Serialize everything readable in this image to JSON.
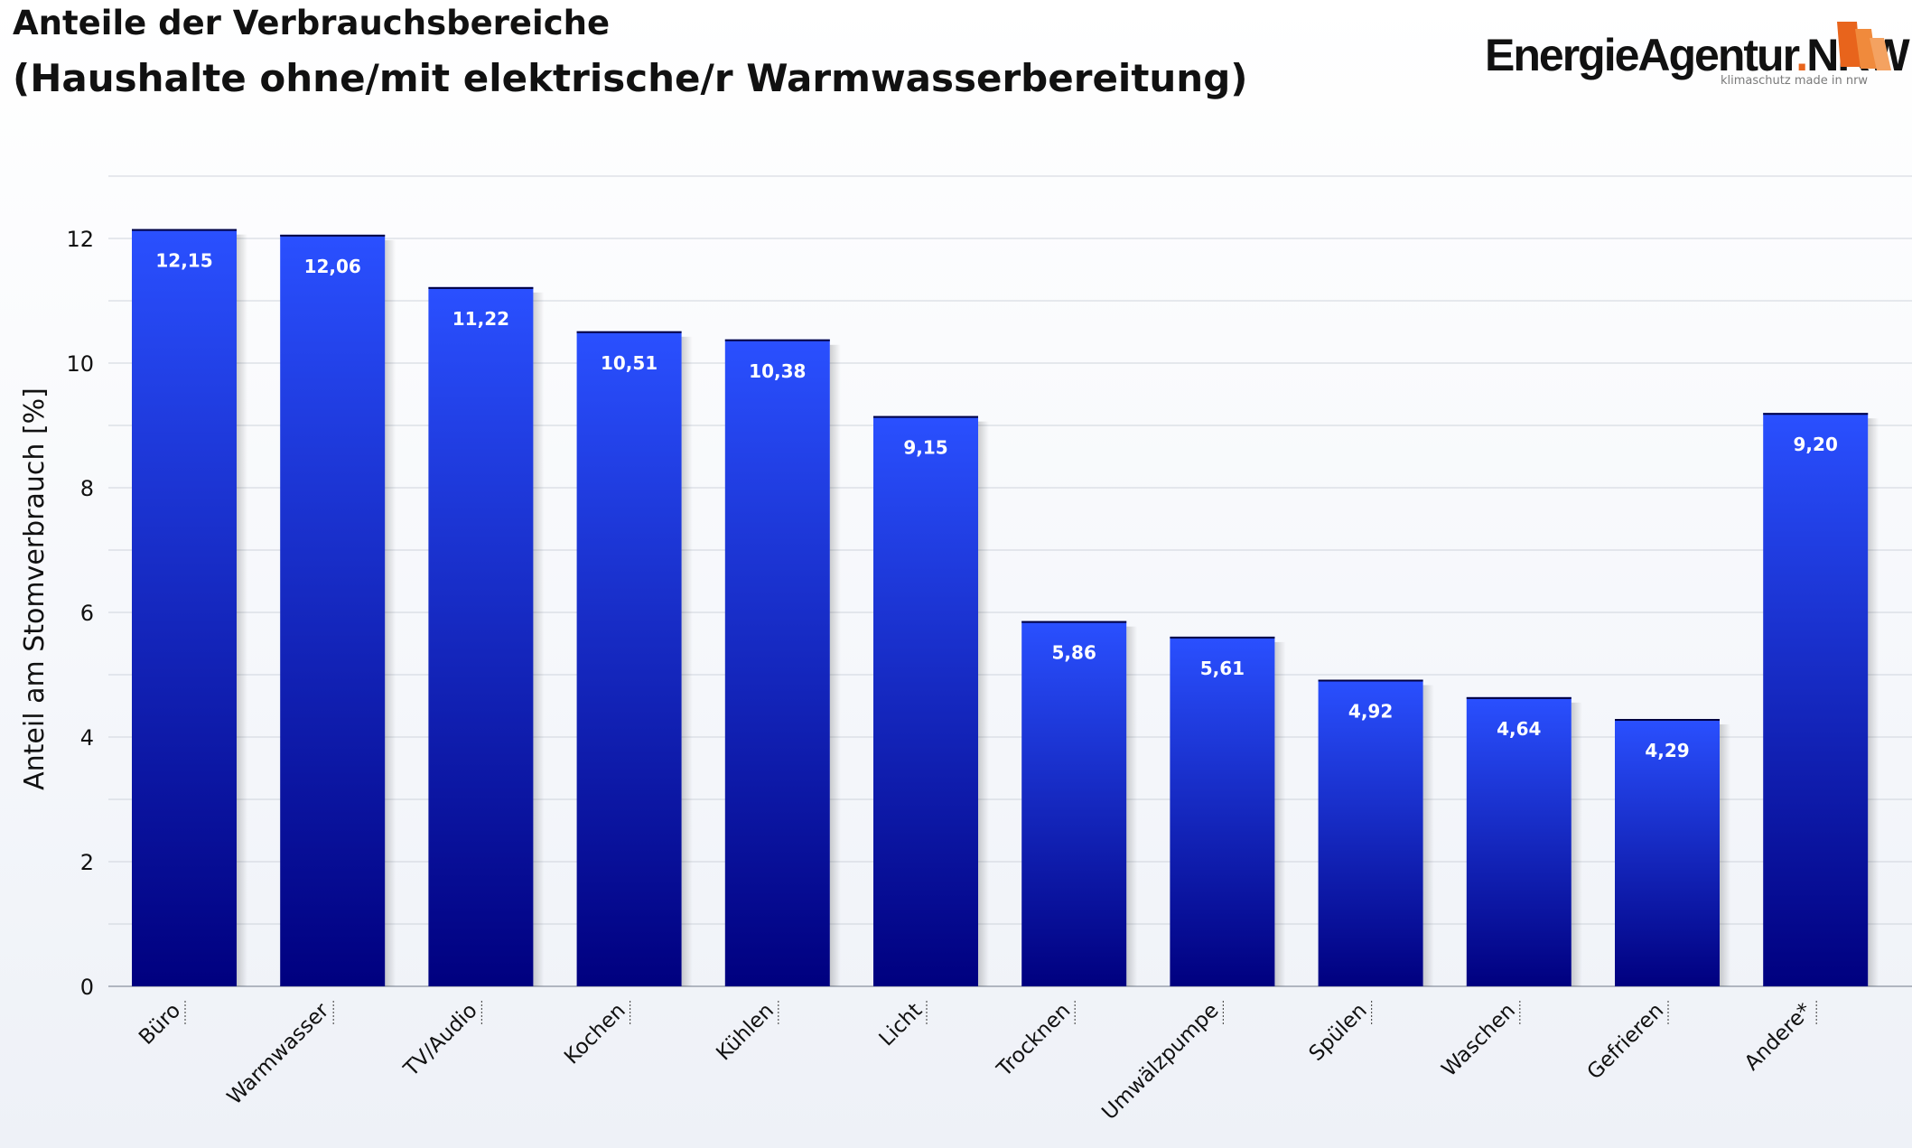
{
  "header": {
    "title": "Anteile der Verbrauchsbereiche",
    "subtitle": "(Haushalte ohne/mit elektrische/r Warmwasserbereitung)"
  },
  "logo": {
    "name_part1": "EnergieAgentur",
    "name_dot": ".",
    "name_part2": "NRW",
    "tagline": "klimaschutz made in nrw",
    "icon": "flame-sails-icon"
  },
  "colors": {
    "bar_top": "#2a50ff",
    "bar_bottom": "#00007f",
    "grid": "#cfd4dc",
    "logo_accent": "#e8641c"
  },
  "chart_data": {
    "type": "bar",
    "title": "Anteile der Verbrauchsbereiche",
    "subtitle": "(Haushalte ohne/mit elektrische/r Warmwasserbereitung)",
    "xlabel": "",
    "ylabel": "Anteil am Stomverbrauch [%]",
    "ylim": [
      0,
      13
    ],
    "yticks": [
      0,
      2,
      4,
      6,
      8,
      10,
      12
    ],
    "grid": true,
    "categories": [
      "Büro",
      "Warmwasser",
      "TV/Audio",
      "Kochen",
      "Kühlen",
      "Licht",
      "Trocknen",
      "Umwälzpumpe",
      "Spülen",
      "Waschen",
      "Gefrieren",
      "Andere*"
    ],
    "values": [
      12.15,
      12.06,
      11.22,
      10.51,
      10.38,
      9.15,
      5.86,
      5.61,
      4.92,
      4.64,
      4.29,
      9.2
    ],
    "value_labels": [
      "12,15",
      "12,06",
      "11,22",
      "10,51",
      "10,38",
      "9,15",
      "5,86",
      "5,61",
      "4,92",
      "4,64",
      "4,29",
      "9,20"
    ]
  }
}
